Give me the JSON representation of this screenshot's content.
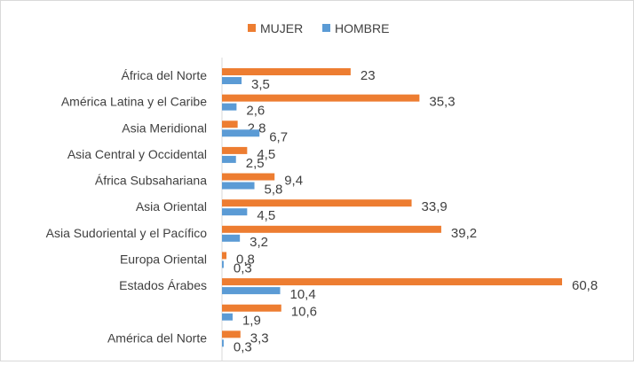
{
  "chart_data": {
    "type": "bar",
    "orientation": "horizontal",
    "title": "",
    "xlabel": "",
    "ylabel": "",
    "xlim": [
      0,
      60.8
    ],
    "grid": false,
    "legend_position": "top",
    "categories": [
      "África del Norte",
      "América Latina y el Caribe",
      "Asia Meridional",
      "Asia Central y Occidental",
      "África Subsahariana",
      "Asia Oriental",
      "Asia Sudoriental y el Pacífico",
      "Europa Oriental",
      "Estados Árabes",
      "",
      "América del Norte"
    ],
    "series": [
      {
        "name": "MUJER",
        "color": "#ed7d31",
        "values": [
          23,
          35.3,
          2.8,
          4.5,
          9.4,
          33.9,
          39.2,
          0.8,
          60.8,
          10.6,
          3.3
        ]
      },
      {
        "name": "HOMBRE",
        "color": "#5b9bd5",
        "values": [
          3.5,
          2.6,
          6.7,
          2.5,
          5.8,
          4.5,
          3.2,
          0.3,
          10.4,
          1.9,
          0.3
        ]
      }
    ],
    "value_labels": [
      [
        "23",
        "35,3",
        "2,8",
        "4,5",
        "9,4",
        "33,9",
        "39,2",
        "0,8",
        "60,8",
        "10,6",
        "3,3"
      ],
      [
        "3,5",
        "2,6",
        "6,7",
        "2,5",
        "5,8",
        "4,5",
        "3,2",
        "0,3",
        "10,4",
        "1,9",
        "0,3"
      ]
    ],
    "axis_color": "#d9d9d9",
    "text_color": "#404040"
  }
}
